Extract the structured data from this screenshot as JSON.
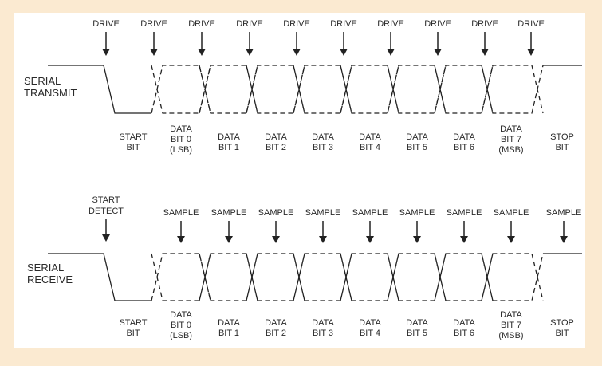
{
  "colors": {
    "background": "#fbead1",
    "panel": "#ffffff",
    "ink": "#222222"
  },
  "transmit": {
    "label_lines": [
      "SERIAL",
      "TRANSMIT"
    ],
    "marker_label": "DRIVE",
    "marker_count": 10,
    "bit_labels": [
      [
        "START",
        "BIT"
      ],
      [
        "DATA",
        "BIT 0",
        "(LSB)"
      ],
      [
        "DATA",
        "BIT 1"
      ],
      [
        "DATA",
        "BIT 2"
      ],
      [
        "DATA",
        "BIT 3"
      ],
      [
        "DATA",
        "BIT 4"
      ],
      [
        "DATA",
        "BIT 5"
      ],
      [
        "DATA",
        "BIT 6"
      ],
      [
        "DATA",
        "BIT 7",
        "(MSB)"
      ],
      [
        "STOP",
        "BIT"
      ]
    ]
  },
  "receive": {
    "label_lines": [
      "SERIAL",
      "RECEIVE"
    ],
    "start_marker_lines": [
      "START",
      "DETECT"
    ],
    "marker_label": "SAMPLE",
    "marker_count": 9,
    "bit_labels": [
      [
        "START",
        "BIT"
      ],
      [
        "DATA",
        "BIT 0",
        "(LSB)"
      ],
      [
        "DATA",
        "BIT 1"
      ],
      [
        "DATA",
        "BIT 2"
      ],
      [
        "DATA",
        "BIT 3"
      ],
      [
        "DATA",
        "BIT 4"
      ],
      [
        "DATA",
        "BIT 5"
      ],
      [
        "DATA",
        "BIT 6"
      ],
      [
        "DATA",
        "BIT 7",
        "(MSB)"
      ],
      [
        "STOP",
        "BIT"
      ]
    ]
  }
}
